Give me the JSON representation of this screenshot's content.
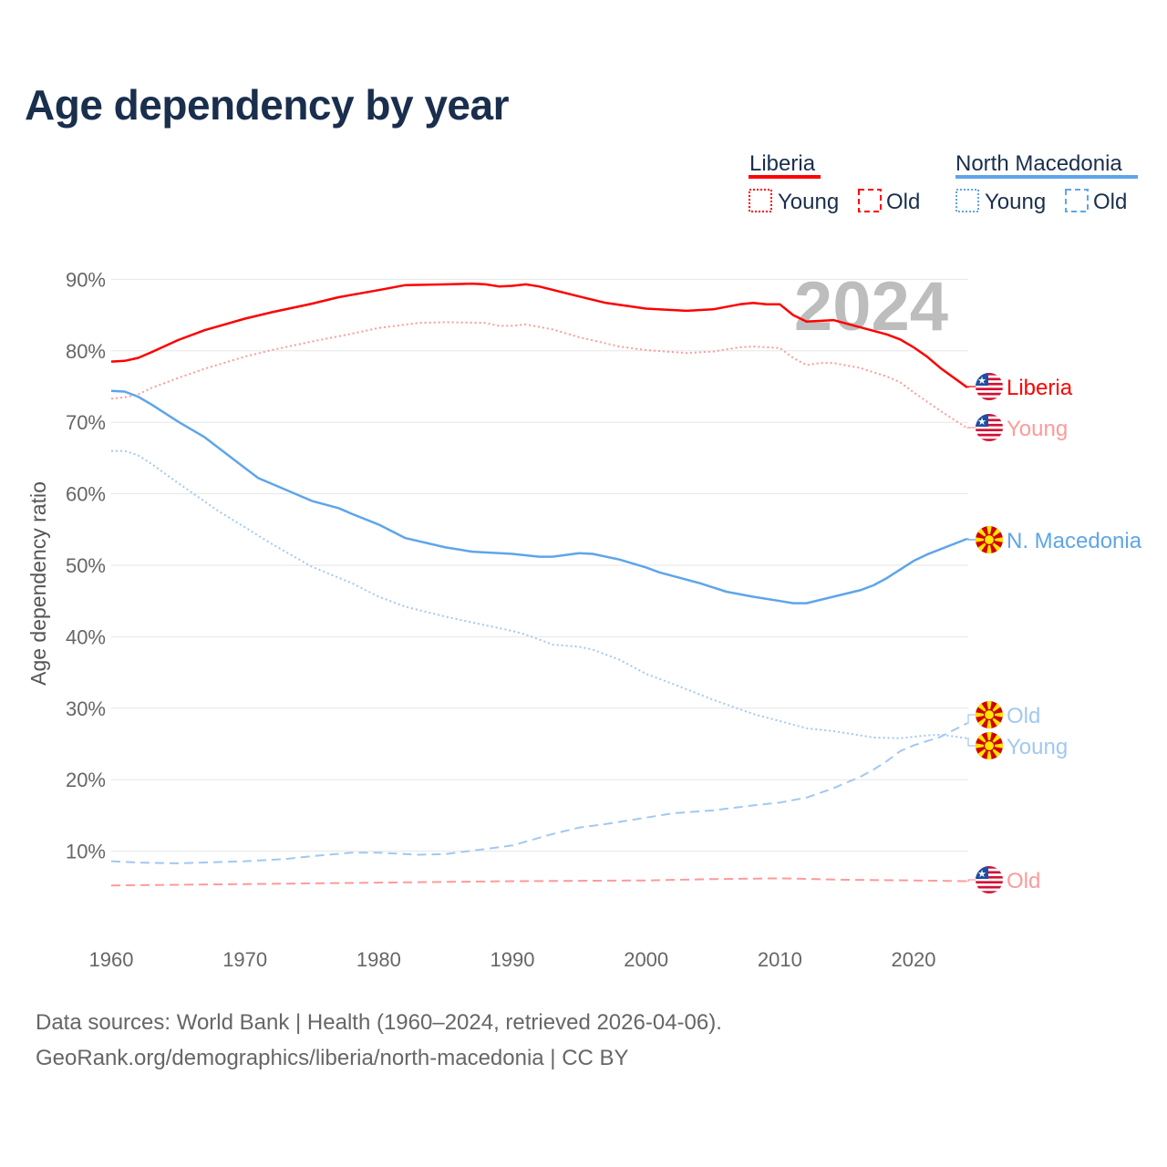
{
  "title": "Age dependency by year",
  "legend": {
    "groups": [
      {
        "name": "Liberia",
        "color": "#ff0000",
        "items": [
          "Young",
          "Old"
        ]
      },
      {
        "name": "North Macedonia",
        "color": "#5ea5ea",
        "items": [
          "Young",
          "Old"
        ]
      }
    ]
  },
  "year_watermark": "2024",
  "footer": {
    "line1": "Data sources: World Bank | Health (1960–2024, retrieved 2026-04-06).",
    "line2": "GeoRank.org/demographics/liberia/north-macedonia | CC BY"
  },
  "chart_data": {
    "type": "line",
    "title": "Age dependency by year",
    "xlabel": "",
    "ylabel": "Age dependency ratio",
    "xlim": [
      1960,
      2024
    ],
    "ylim": [
      0,
      90
    ],
    "x_ticks": [
      "1960",
      "1970",
      "1980",
      "1990",
      "2000",
      "2010",
      "2020"
    ],
    "y_ticks": [
      "10%",
      "20%",
      "30%",
      "40%",
      "50%",
      "60%",
      "70%",
      "80%",
      "90%"
    ],
    "grid": true,
    "series": [
      {
        "name": "Liberia",
        "label": "Liberia",
        "color": "#ff0000",
        "style": "solid",
        "flag": "liberia",
        "points": [
          [
            1960,
            78.5
          ],
          [
            1961,
            78.6
          ],
          [
            1962,
            79.0
          ],
          [
            1963,
            79.8
          ],
          [
            1965,
            81.5
          ],
          [
            1967,
            82.9
          ],
          [
            1970,
            84.5
          ],
          [
            1972,
            85.4
          ],
          [
            1975,
            86.6
          ],
          [
            1977,
            87.5
          ],
          [
            1980,
            88.5
          ],
          [
            1982,
            89.2
          ],
          [
            1985,
            89.3
          ],
          [
            1987,
            89.4
          ],
          [
            1988,
            89.3
          ],
          [
            1989,
            89.0
          ],
          [
            1990,
            89.1
          ],
          [
            1991,
            89.3
          ],
          [
            1992,
            89.0
          ],
          [
            1995,
            87.6
          ],
          [
            1997,
            86.7
          ],
          [
            2000,
            85.9
          ],
          [
            2003,
            85.6
          ],
          [
            2005,
            85.8
          ],
          [
            2007,
            86.5
          ],
          [
            2008,
            86.7
          ],
          [
            2009,
            86.5
          ],
          [
            2010,
            86.5
          ],
          [
            2011,
            85.0
          ],
          [
            2012,
            84.1
          ],
          [
            2014,
            84.3
          ],
          [
            2016,
            83.3
          ],
          [
            2018,
            82.3
          ],
          [
            2019,
            81.6
          ],
          [
            2020,
            80.5
          ],
          [
            2021,
            79.2
          ],
          [
            2022,
            77.6
          ],
          [
            2024,
            74.9
          ]
        ]
      },
      {
        "name": "Liberia Young",
        "label": "Young",
        "color": "#ff9a9a",
        "style": "dotted",
        "flag": "liberia",
        "points": [
          [
            1960,
            73.3
          ],
          [
            1961,
            73.5
          ],
          [
            1962,
            73.9
          ],
          [
            1963,
            74.8
          ],
          [
            1965,
            76.2
          ],
          [
            1967,
            77.5
          ],
          [
            1970,
            79.2
          ],
          [
            1972,
            80.1
          ],
          [
            1975,
            81.3
          ],
          [
            1978,
            82.4
          ],
          [
            1980,
            83.2
          ],
          [
            1983,
            83.9
          ],
          [
            1985,
            84.0
          ],
          [
            1988,
            83.9
          ],
          [
            1989,
            83.5
          ],
          [
            1990,
            83.5
          ],
          [
            1991,
            83.7
          ],
          [
            1993,
            83.0
          ],
          [
            1995,
            81.9
          ],
          [
            1998,
            80.6
          ],
          [
            2000,
            80.1
          ],
          [
            2003,
            79.7
          ],
          [
            2005,
            79.9
          ],
          [
            2007,
            80.5
          ],
          [
            2008,
            80.6
          ],
          [
            2010,
            80.4
          ],
          [
            2011,
            79.0
          ],
          [
            2012,
            78.0
          ],
          [
            2013,
            78.3
          ],
          [
            2014,
            78.3
          ],
          [
            2016,
            77.6
          ],
          [
            2018,
            76.4
          ],
          [
            2019,
            75.6
          ],
          [
            2020,
            74.2
          ],
          [
            2022,
            71.6
          ],
          [
            2024,
            69.2
          ]
        ]
      },
      {
        "name": "Liberia Old",
        "label": "Old",
        "color": "#ff9a9a",
        "style": "dashed",
        "flag": "liberia",
        "points": [
          [
            1960,
            5.2
          ],
          [
            1970,
            5.4
          ],
          [
            1980,
            5.6
          ],
          [
            1990,
            5.8
          ],
          [
            2000,
            5.9
          ],
          [
            2005,
            6.1
          ],
          [
            2010,
            6.2
          ],
          [
            2015,
            6.0
          ],
          [
            2020,
            5.9
          ],
          [
            2024,
            5.8
          ]
        ]
      },
      {
        "name": "North Macedonia",
        "label": "N. Macedonia",
        "color": "#5ea5ea",
        "style": "solid",
        "flag": "macedonia",
        "points": [
          [
            1960,
            74.4
          ],
          [
            1961,
            74.3
          ],
          [
            1962,
            73.6
          ],
          [
            1963,
            72.5
          ],
          [
            1965,
            70.1
          ],
          [
            1967,
            67.9
          ],
          [
            1970,
            63.6
          ],
          [
            1971,
            62.2
          ],
          [
            1973,
            60.6
          ],
          [
            1975,
            59.0
          ],
          [
            1977,
            58.0
          ],
          [
            1978,
            57.2
          ],
          [
            1980,
            55.7
          ],
          [
            1982,
            53.8
          ],
          [
            1985,
            52.5
          ],
          [
            1987,
            51.9
          ],
          [
            1990,
            51.6
          ],
          [
            1992,
            51.2
          ],
          [
            1993,
            51.2
          ],
          [
            1995,
            51.7
          ],
          [
            1996,
            51.6
          ],
          [
            1998,
            50.8
          ],
          [
            2000,
            49.7
          ],
          [
            2001,
            49.0
          ],
          [
            2004,
            47.5
          ],
          [
            2006,
            46.3
          ],
          [
            2008,
            45.6
          ],
          [
            2010,
            45.0
          ],
          [
            2011,
            44.7
          ],
          [
            2012,
            44.7
          ],
          [
            2014,
            45.6
          ],
          [
            2016,
            46.5
          ],
          [
            2017,
            47.2
          ],
          [
            2018,
            48.2
          ],
          [
            2020,
            50.6
          ],
          [
            2021,
            51.5
          ],
          [
            2024,
            53.7
          ]
        ]
      },
      {
        "name": "North Macedonia Young",
        "label": "Young",
        "color": "#a2c8f0",
        "style": "dotted",
        "flag": "macedonia",
        "points": [
          [
            1960,
            66.0
          ],
          [
            1961,
            66.0
          ],
          [
            1962,
            65.4
          ],
          [
            1963,
            64.2
          ],
          [
            1965,
            61.5
          ],
          [
            1968,
            57.6
          ],
          [
            1970,
            55.3
          ],
          [
            1972,
            53.0
          ],
          [
            1975,
            49.8
          ],
          [
            1978,
            47.5
          ],
          [
            1980,
            45.6
          ],
          [
            1982,
            44.2
          ],
          [
            1985,
            42.8
          ],
          [
            1988,
            41.6
          ],
          [
            1990,
            40.8
          ],
          [
            1991,
            40.3
          ],
          [
            1993,
            38.9
          ],
          [
            1995,
            38.6
          ],
          [
            1996,
            38.2
          ],
          [
            1998,
            36.8
          ],
          [
            2000,
            34.8
          ],
          [
            2002,
            33.4
          ],
          [
            2005,
            31.2
          ],
          [
            2008,
            29.2
          ],
          [
            2010,
            28.2
          ],
          [
            2012,
            27.2
          ],
          [
            2014,
            26.8
          ],
          [
            2015,
            26.5
          ],
          [
            2017,
            25.9
          ],
          [
            2019,
            25.8
          ],
          [
            2021,
            26.2
          ],
          [
            2022,
            26.3
          ],
          [
            2024,
            25.8
          ]
        ]
      },
      {
        "name": "North Macedonia Old",
        "label": "Old",
        "color": "#a2c8f0",
        "style": "dashed",
        "flag": "macedonia",
        "points": [
          [
            1960,
            8.6
          ],
          [
            1962,
            8.4
          ],
          [
            1965,
            8.3
          ],
          [
            1970,
            8.6
          ],
          [
            1973,
            8.9
          ],
          [
            1975,
            9.3
          ],
          [
            1978,
            9.8
          ],
          [
            1980,
            9.8
          ],
          [
            1983,
            9.5
          ],
          [
            1985,
            9.6
          ],
          [
            1988,
            10.3
          ],
          [
            1990,
            10.8
          ],
          [
            1993,
            12.4
          ],
          [
            1995,
            13.3
          ],
          [
            1997,
            13.8
          ],
          [
            2000,
            14.7
          ],
          [
            2002,
            15.3
          ],
          [
            2005,
            15.7
          ],
          [
            2008,
            16.4
          ],
          [
            2010,
            16.8
          ],
          [
            2012,
            17.5
          ],
          [
            2014,
            18.8
          ],
          [
            2016,
            20.4
          ],
          [
            2017,
            21.4
          ],
          [
            2018,
            22.6
          ],
          [
            2019,
            24.0
          ],
          [
            2020,
            24.8
          ],
          [
            2022,
            26.0
          ],
          [
            2024,
            27.9
          ]
        ]
      }
    ]
  }
}
